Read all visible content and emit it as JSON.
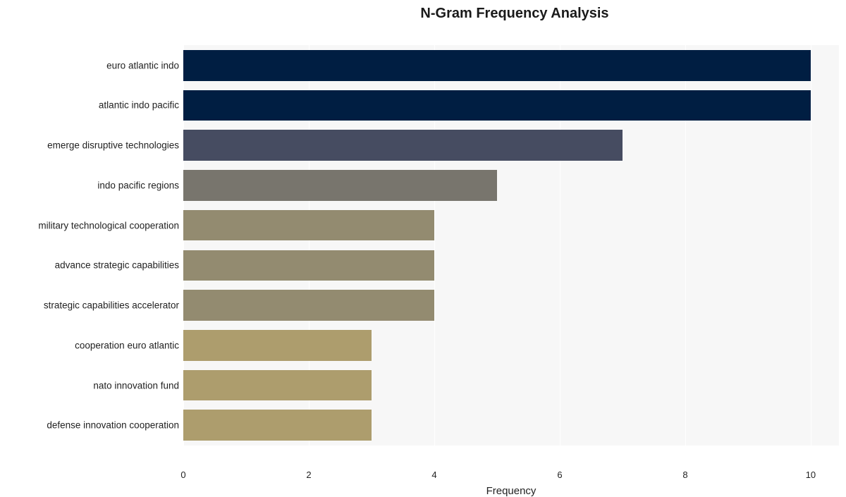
{
  "chart": {
    "type": "bar-horizontal",
    "title": "N-Gram Frequency Analysis",
    "title_fontsize": 20,
    "xlabel": "Frequency",
    "label_fontsize": 15,
    "background_color": "#ffffff",
    "plot_bg_color": "#f7f7f7",
    "gridline_color": "#ffffff",
    "tick_fontsize": 13,
    "y_label_fontsize": 13.5,
    "xlim": [
      0,
      10.45
    ],
    "x_ticks": [
      0,
      2,
      4,
      6,
      8,
      10
    ],
    "bar_height_ratio": 0.77,
    "categories": [
      "euro atlantic indo",
      "atlantic indo pacific",
      "emerge disruptive technologies",
      "indo pacific regions",
      "military technological cooperation",
      "advance strategic capabilities",
      "strategic capabilities accelerator",
      "cooperation euro atlantic",
      "nato innovation fund",
      "defense innovation cooperation"
    ],
    "values": [
      10,
      10,
      7,
      5,
      4,
      4,
      4,
      3,
      3,
      3
    ],
    "bar_colors": [
      "#001e42",
      "#001e42",
      "#464c61",
      "#78756d",
      "#938b70",
      "#938b70",
      "#938b70",
      "#ad9d6d",
      "#ad9d6d",
      "#ad9d6d"
    ]
  }
}
